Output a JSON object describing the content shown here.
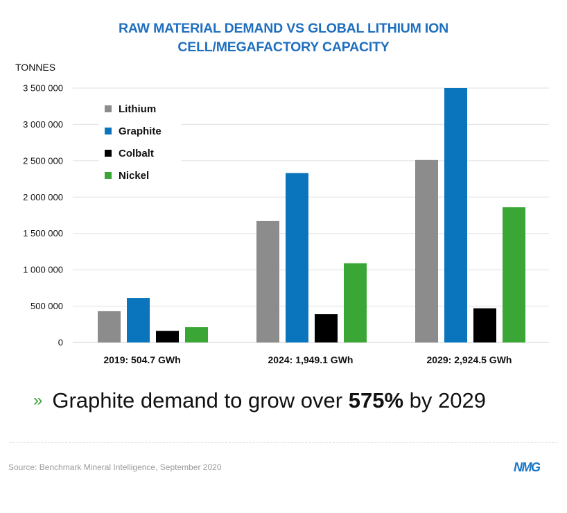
{
  "chart_data": {
    "type": "bar",
    "title_lines": [
      "RAW MATERIAL DEMAND VS GLOBAL LITHIUM ION",
      "CELL/MEGAFACTORY CAPACITY"
    ],
    "ylabel": "TONNES",
    "ylim": [
      0,
      3500000
    ],
    "yticks": [
      0,
      500000,
      1000000,
      1500000,
      2000000,
      2500000,
      3000000,
      3500000
    ],
    "ytick_labels": [
      "0",
      "500 000",
      "1 000 000",
      "1 500 000",
      "2 000 000",
      "2 500 000",
      "3 000 000",
      "3 500 000"
    ],
    "categories": [
      "2019: 504.7 GWh",
      "2024: 1,949.1 GWh",
      "2029: 2,924.5 GWh"
    ],
    "series": [
      {
        "name": "Lithium",
        "color": "#8c8c8c",
        "values": [
          430000,
          1670000,
          2510000
        ]
      },
      {
        "name": "Graphite",
        "color": "#0a75bc",
        "values": [
          610000,
          2330000,
          3500000
        ]
      },
      {
        "name": "Colbalt",
        "color": "#000000",
        "values": [
          160000,
          390000,
          470000
        ]
      },
      {
        "name": "Nickel",
        "color": "#3aa635",
        "values": [
          210000,
          1090000,
          1860000
        ]
      }
    ],
    "grid": true,
    "legend_position": "top-left"
  },
  "headline": {
    "chevron": "»",
    "pre": "Graphite demand to grow over",
    "bold": "575%",
    "post": "by 2029"
  },
  "footer": {
    "source": "Source: Benchmark Mineral Intelligence, September 2020",
    "logo": "NMG"
  }
}
